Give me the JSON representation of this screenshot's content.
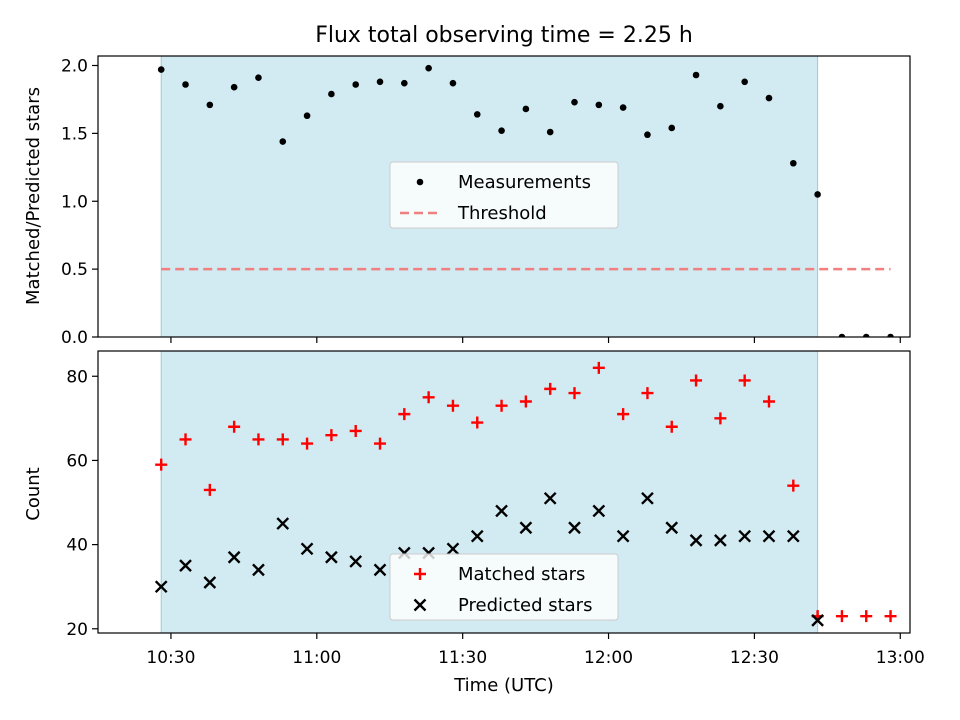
{
  "chart_data": {
    "title": "Flux total observing time = 2.25 h",
    "xlabel": "Time (UTC)",
    "x_ticks": [
      "10:30",
      "11:00",
      "11:30",
      "12:00",
      "12:30",
      "13:00"
    ],
    "x_tick_minutes": [
      630,
      660,
      690,
      720,
      750,
      780
    ],
    "xlim_minutes": [
      615,
      782
    ],
    "observing_window_minutes": [
      628,
      763
    ],
    "shade_color": "#add8e6",
    "times_minutes": [
      628,
      633,
      638,
      643,
      648,
      653,
      658,
      663,
      668,
      673,
      678,
      683,
      688,
      693,
      698,
      703,
      708,
      713,
      718,
      723,
      728,
      733,
      738,
      743,
      748,
      753,
      758,
      763,
      768,
      773,
      778
    ],
    "panels": [
      {
        "type": "scatter",
        "ylabel": "Matched/Predicted stars",
        "ylim": [
          0,
          2.07
        ],
        "y_ticks": [
          "0.0",
          "0.5",
          "1.0",
          "1.5",
          "2.0"
        ],
        "y_tick_values": [
          0,
          0.5,
          1.0,
          1.5,
          2.0
        ],
        "legend": {
          "placement": "center",
          "entries": [
            "Measurements",
            "Threshold"
          ]
        },
        "series": [
          {
            "name": "Measurements",
            "marker": "dot",
            "color": "#000000",
            "values": [
              1.97,
              1.86,
              1.71,
              1.84,
              1.91,
              1.44,
              1.63,
              1.79,
              1.86,
              1.88,
              1.87,
              1.98,
              1.87,
              1.64,
              1.52,
              1.68,
              1.51,
              1.73,
              1.71,
              1.69,
              1.49,
              1.54,
              1.93,
              1.7,
              1.88,
              1.76,
              1.28,
              1.05,
              0.0,
              0.0,
              0.0
            ]
          },
          {
            "name": "Threshold",
            "marker": "dashed-line",
            "color": "#f08080",
            "value": 0.5,
            "x_range_minutes": [
              628,
              778
            ]
          }
        ]
      },
      {
        "type": "scatter",
        "ylabel": "Count",
        "ylim": [
          19,
          86
        ],
        "y_ticks": [
          "20",
          "40",
          "60",
          "80"
        ],
        "y_tick_values": [
          20,
          40,
          60,
          80
        ],
        "legend": {
          "placement": "lower center",
          "entries": [
            "Matched stars",
            "Predicted stars"
          ]
        },
        "series": [
          {
            "name": "Matched stars",
            "marker": "plus",
            "color": "#ff0000",
            "values": [
              59,
              65,
              53,
              68,
              65,
              65,
              64,
              66,
              67,
              64,
              71,
              75,
              73,
              69,
              73,
              74,
              77,
              76,
              82,
              71,
              76,
              68,
              79,
              70,
              79,
              74,
              54,
              23,
              23,
              23,
              23
            ]
          },
          {
            "name": "Predicted stars",
            "marker": "x",
            "color": "#000000",
            "values": [
              30,
              35,
              31,
              37,
              34,
              45,
              39,
              37,
              36,
              34,
              38,
              38,
              39,
              42,
              48,
              44,
              51,
              44,
              48,
              42,
              51,
              44,
              41,
              41,
              42,
              42,
              42,
              22
            ]
          }
        ]
      }
    ]
  }
}
